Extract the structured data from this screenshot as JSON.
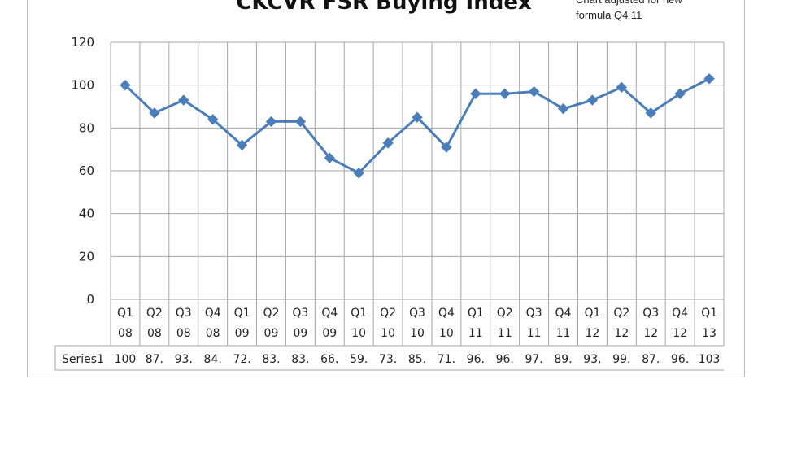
{
  "chart_data": {
    "type": "line",
    "title": "CKCVR FSR Buying Index",
    "annotation": [
      "Chart adjusted for new",
      "formula  Q4 11"
    ],
    "categories": [
      [
        "Q1",
        "08"
      ],
      [
        "Q2",
        "08"
      ],
      [
        "Q3",
        "08"
      ],
      [
        "Q4",
        "08"
      ],
      [
        "Q1",
        "09"
      ],
      [
        "Q2",
        "09"
      ],
      [
        "Q3",
        "09"
      ],
      [
        "Q4",
        "09"
      ],
      [
        "Q1",
        "10"
      ],
      [
        "Q2",
        "10"
      ],
      [
        "Q3",
        "10"
      ],
      [
        "Q4",
        "10"
      ],
      [
        "Q1",
        "11"
      ],
      [
        "Q2",
        "11"
      ],
      [
        "Q3",
        "11"
      ],
      [
        "Q4",
        "11"
      ],
      [
        "Q1",
        "12"
      ],
      [
        "Q2",
        "12"
      ],
      [
        "Q3",
        "12"
      ],
      [
        "Q4",
        "12"
      ],
      [
        "Q1",
        "13"
      ]
    ],
    "series": [
      {
        "name": "Series1",
        "values": [
          100,
          87,
          93,
          84,
          72,
          83,
          83,
          66,
          59,
          73,
          85,
          71,
          96,
          96,
          97,
          89,
          93,
          99,
          87,
          96,
          103
        ],
        "table_labels": [
          "100",
          "87.",
          "93.",
          "84.",
          "72.",
          "83.",
          "83.",
          "66.",
          "59.",
          "73.",
          "85.",
          "71.",
          "96.",
          "96.",
          "97.",
          "89.",
          "93.",
          "99.",
          "87.",
          "96.",
          "103"
        ]
      }
    ],
    "ylim": [
      0,
      120
    ],
    "yticks": [
      0,
      20,
      40,
      60,
      80,
      100,
      120
    ],
    "grid": true,
    "legend": "data-table",
    "colors": {
      "line": "#4a7ebb",
      "grid": "#a6a6a6"
    }
  }
}
